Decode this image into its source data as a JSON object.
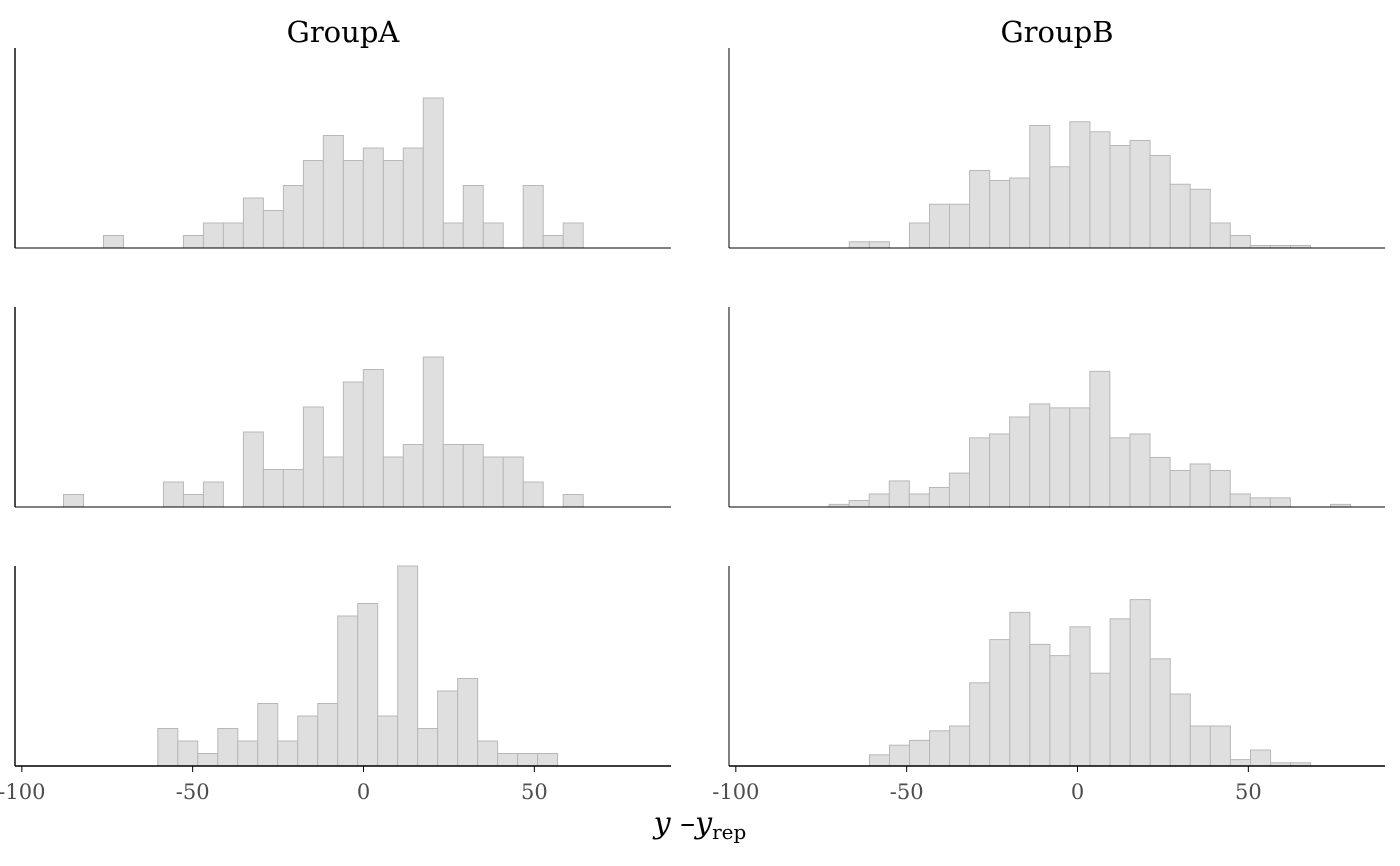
{
  "chart_data": {
    "type": "bar",
    "chart_kind": "histogram",
    "facet_titles": [
      "GroupA",
      "GroupB"
    ],
    "rows": 3,
    "xlabel": {
      "main": "y –y",
      "subscript": "rep"
    },
    "ylabel": "",
    "xlim": [
      -102,
      90
    ],
    "x_ticks": [
      -100,
      -50,
      0,
      50
    ],
    "x_tick_labels": [
      "-100",
      "-50",
      "0",
      "50"
    ],
    "y_ticks_shown": false,
    "grid": false,
    "bar_fill": "#dfdfdf",
    "bar_outline": "#b8b8b8",
    "panels": [
      {
        "column": "GroupA",
        "row": 1,
        "bin_start": -76.1,
        "bin_width": 5.85,
        "ymax": 12,
        "counts": [
          1,
          0,
          0,
          0,
          1,
          2,
          2,
          4,
          3,
          5,
          7,
          9,
          7,
          8,
          7,
          8,
          12,
          2,
          5,
          2,
          0,
          5,
          1,
          2
        ]
      },
      {
        "column": "GroupB",
        "row": 1,
        "bin_start": -66.8,
        "bin_width": 5.87,
        "ymax": 12,
        "counts": [
          0.5,
          0.5,
          0,
          2,
          3.5,
          3.5,
          6.2,
          5.4,
          5.6,
          9.8,
          6.5,
          10.1,
          9.3,
          8.2,
          8.6,
          7.4,
          5.1,
          4.7,
          2,
          1,
          0.2,
          0.2,
          0.2
        ]
      },
      {
        "column": "GroupA",
        "row": 2,
        "bin_start": -87.8,
        "bin_width": 5.85,
        "ymax": 12,
        "counts": [
          1,
          0,
          0,
          0,
          0,
          2,
          1,
          2,
          0,
          6,
          3,
          3,
          8,
          4,
          10,
          11,
          4,
          5,
          12,
          5,
          5,
          4,
          4,
          2,
          0,
          1
        ]
      },
      {
        "column": "GroupB",
        "row": 2,
        "bin_start": -72.7,
        "bin_width": 5.87,
        "ymax": 11.5,
        "counts": [
          0.2,
          0.5,
          1,
          2,
          1,
          1.5,
          2.6,
          5.3,
          5.6,
          6.9,
          7.9,
          7.6,
          7.6,
          10.4,
          5.3,
          5.6,
          3.8,
          2.8,
          3.3,
          2.8,
          1,
          0.7,
          0.7,
          0,
          0,
          0.2
        ]
      },
      {
        "column": "GroupA",
        "row": 3,
        "bin_start": -60.2,
        "bin_width": 5.85,
        "ymax": 16,
        "counts": [
          3,
          2,
          1,
          3,
          2,
          5,
          2,
          4,
          5,
          12,
          13,
          4,
          16,
          3,
          6,
          7,
          2,
          1,
          1,
          1
        ]
      },
      {
        "column": "GroupB",
        "row": 3,
        "bin_start": -60.9,
        "bin_width": 5.87,
        "ymax": 12.5,
        "counts": [
          0.7,
          1.3,
          1.6,
          2.2,
          2.5,
          5.2,
          7.9,
          9.6,
          7.6,
          6.9,
          8.7,
          5.8,
          9.2,
          10.4,
          6.7,
          4.5,
          2.5,
          2.5,
          0.4,
          1,
          0.2,
          0.2
        ]
      }
    ]
  }
}
